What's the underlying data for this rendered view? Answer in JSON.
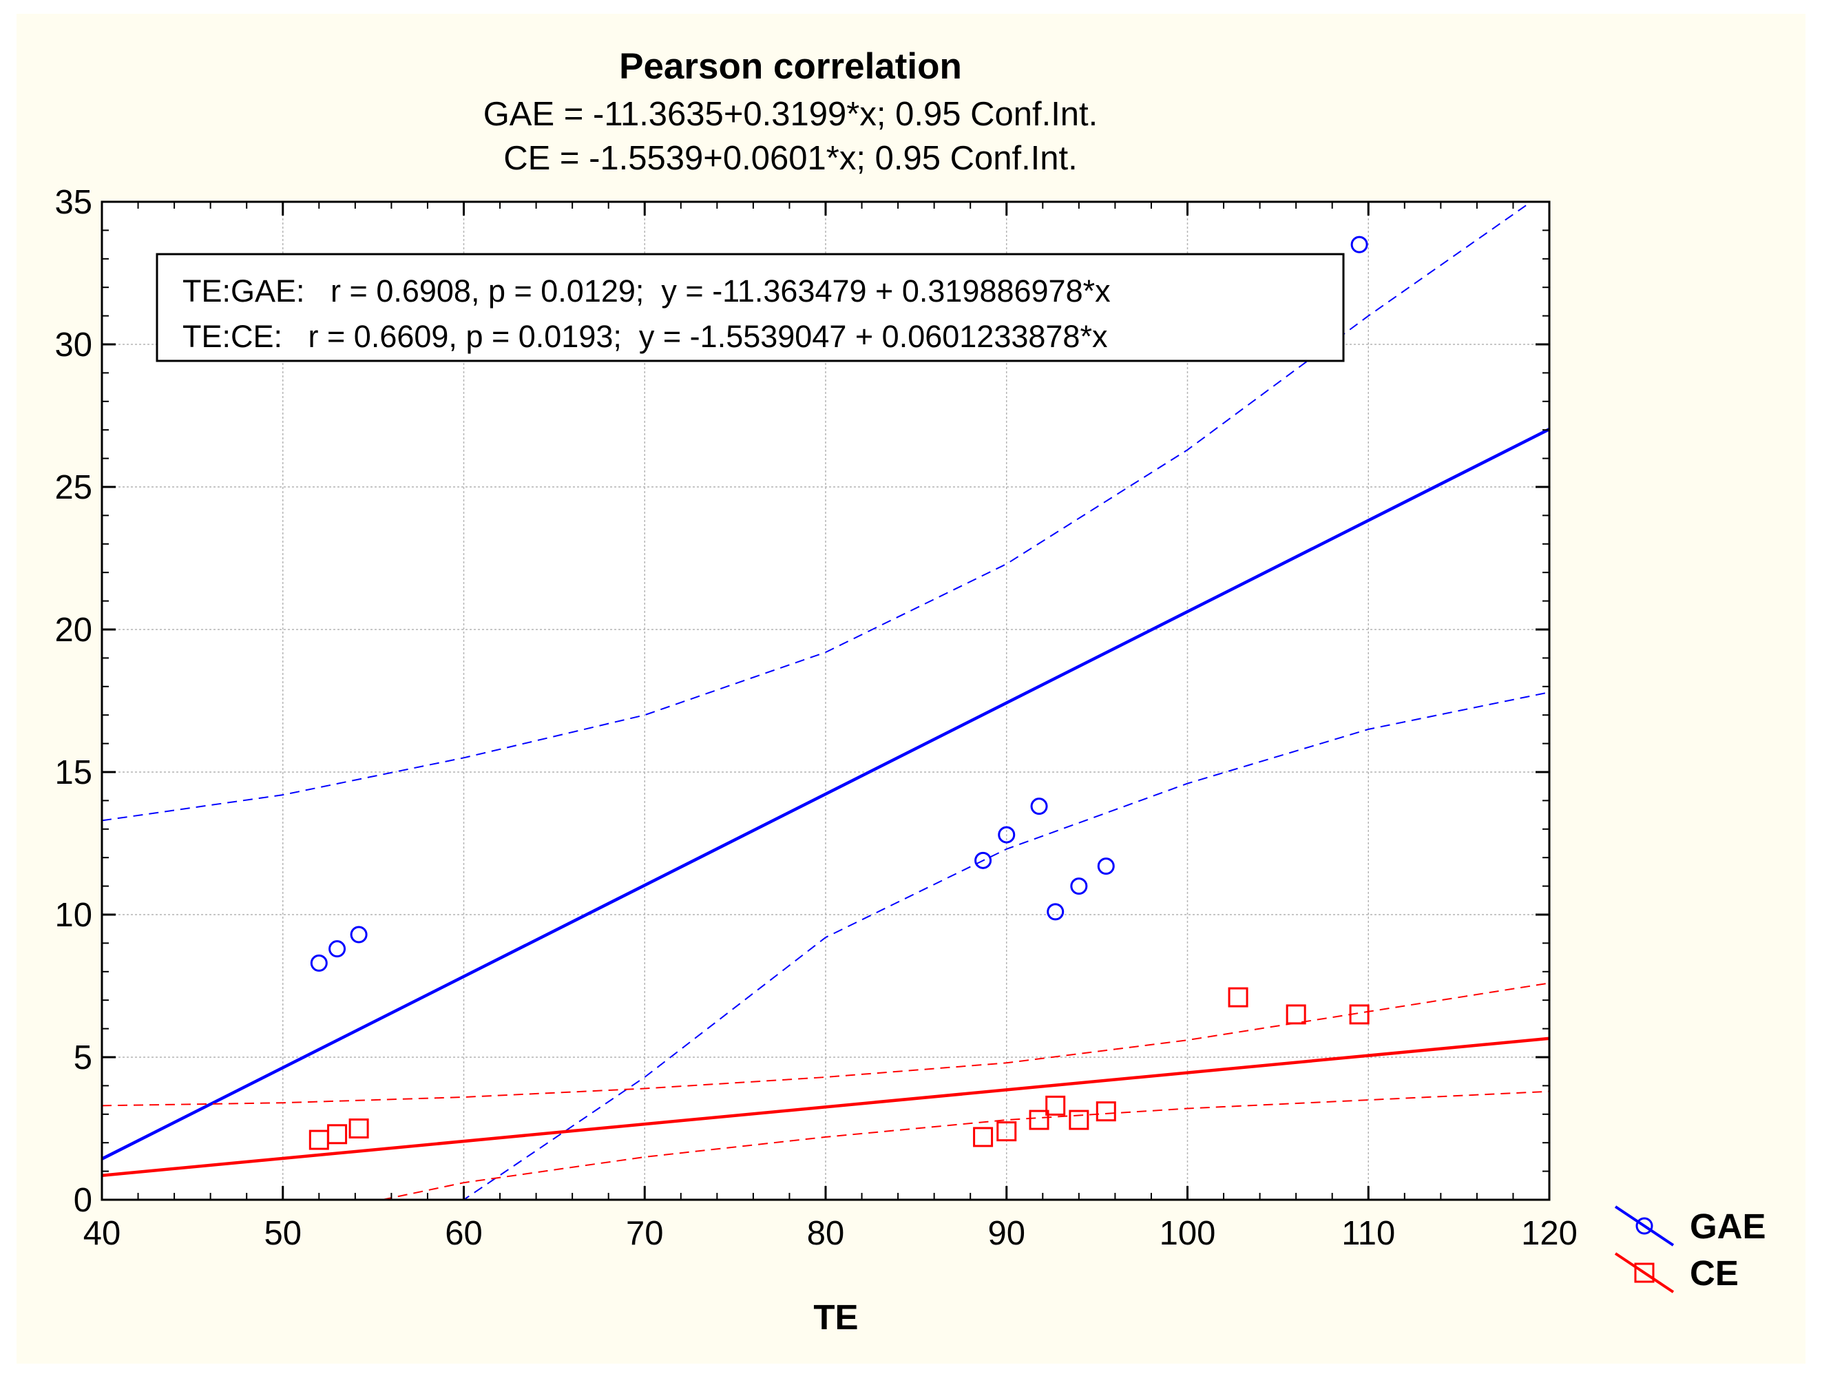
{
  "chart_data": {
    "type": "scatter",
    "title": "Pearson correlation",
    "subtitles": [
      "GAE = -11.3635+0.3199*x; 0.95 Conf.Int.",
      "CE = -1.5539+0.0601*x; 0.95 Conf.Int."
    ],
    "xlabel": "TE",
    "ylabel": "",
    "xlim": [
      40,
      120
    ],
    "ylim": [
      0,
      35
    ],
    "xticks": [
      "40",
      "50",
      "60",
      "70",
      "80",
      "90",
      "100",
      "110",
      "120"
    ],
    "yticks": [
      "0",
      "5",
      "10",
      "15",
      "20",
      "25",
      "30",
      "35"
    ],
    "grid": true,
    "annotation_box": [
      "TE:GAE:   r = 0.6908, p = 0.0129;  y = -11.363479 + 0.319886978*x",
      "TE:CE:   r = 0.6609, p = 0.0193;  y = -1.5539047 + 0.0601233878*x"
    ],
    "legend_position": "right-bottom",
    "series": [
      {
        "name": "GAE",
        "marker": "circle",
        "color": "#0000ff",
        "intercept": -11.3635,
        "slope": 0.3199,
        "ci_upper": [
          [
            40,
            13.3
          ],
          [
            50,
            14.2
          ],
          [
            60,
            15.5
          ],
          [
            70,
            17.0
          ],
          [
            80,
            19.2
          ],
          [
            90,
            22.3
          ],
          [
            100,
            26.3
          ],
          [
            110,
            31.0
          ],
          [
            119,
            35
          ]
        ],
        "ci_lower": [
          [
            57.2,
            0
          ],
          [
            60,
            0
          ],
          [
            70,
            4.3
          ],
          [
            80,
            9.2
          ],
          [
            90,
            12.3
          ],
          [
            100,
            14.6
          ],
          [
            110,
            16.5
          ],
          [
            120,
            17.8
          ]
        ],
        "points": [
          [
            52,
            8.3
          ],
          [
            53,
            8.8
          ],
          [
            54.2,
            9.3
          ],
          [
            88.7,
            11.9
          ],
          [
            90,
            12.8
          ],
          [
            91.8,
            13.8
          ],
          [
            92.7,
            10.1
          ],
          [
            94,
            11.0
          ],
          [
            95.5,
            11.7
          ],
          [
            109.5,
            33.5
          ]
        ]
      },
      {
        "name": "CE",
        "marker": "square",
        "color": "#ff0000",
        "intercept": -1.5539,
        "slope": 0.0601,
        "ci_upper": [
          [
            40,
            3.3
          ],
          [
            50,
            3.4
          ],
          [
            60,
            3.6
          ],
          [
            70,
            3.9
          ],
          [
            80,
            4.3
          ],
          [
            90,
            4.8
          ],
          [
            100,
            5.6
          ],
          [
            110,
            6.6
          ],
          [
            120,
            7.6
          ]
        ],
        "ci_lower": [
          [
            55.5,
            0
          ],
          [
            60,
            0.6
          ],
          [
            70,
            1.5
          ],
          [
            80,
            2.2
          ],
          [
            90,
            2.8
          ],
          [
            100,
            3.2
          ],
          [
            110,
            3.5
          ],
          [
            120,
            3.8
          ]
        ],
        "points": [
          [
            52,
            2.1
          ],
          [
            53,
            2.3
          ],
          [
            54.2,
            2.5
          ],
          [
            88.7,
            2.2
          ],
          [
            90,
            2.4
          ],
          [
            91.8,
            2.8
          ],
          [
            92.7,
            3.3
          ],
          [
            94,
            2.8
          ],
          [
            95.5,
            3.1
          ],
          [
            102.8,
            7.1
          ],
          [
            106,
            6.5
          ],
          [
            109.5,
            6.5
          ]
        ]
      }
    ]
  }
}
